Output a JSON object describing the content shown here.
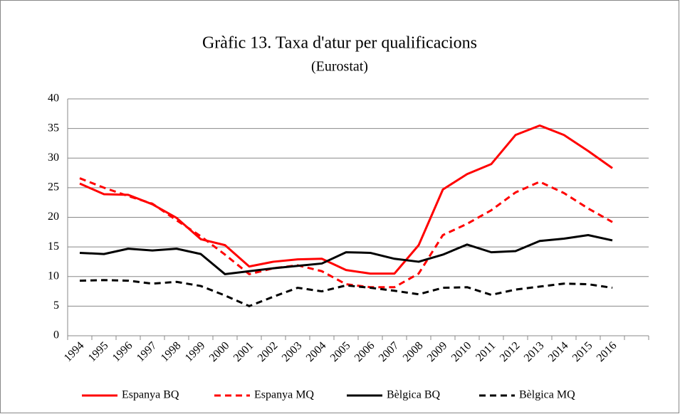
{
  "chart_data": {
    "type": "line",
    "title": "Gràfic 13. Taxa d'atur per qualificacions",
    "subtitle": "(Eurostat)",
    "categories": [
      "1994",
      "1995",
      "1996",
      "1997",
      "1998",
      "1999",
      "2000",
      "2001",
      "2002",
      "2003",
      "2004",
      "2005",
      "2006",
      "2007",
      "2008",
      "2009",
      "2010",
      "2011",
      "2012",
      "2013",
      "2014",
      "2015",
      "2016",
      null
    ],
    "series": [
      {
        "name": "Espanya BQ",
        "color": "#ff0000",
        "dashed": false,
        "values": [
          25.7,
          23.9,
          23.8,
          22.2,
          19.9,
          16.3,
          15.3,
          11.7,
          12.5,
          12.9,
          13.0,
          11.1,
          10.5,
          10.5,
          15.3,
          24.7,
          27.3,
          29.0,
          33.9,
          35.5,
          33.9,
          31.2,
          28.3,
          null
        ]
      },
      {
        "name": "Espanya MQ",
        "color": "#ff0000",
        "dashed": true,
        "values": [
          26.6,
          25.0,
          23.6,
          22.3,
          19.5,
          16.8,
          13.7,
          10.4,
          11.4,
          11.9,
          10.9,
          8.7,
          8.2,
          8.2,
          10.5,
          17.0,
          18.9,
          21.2,
          24.2,
          26.0,
          24.1,
          21.5,
          19.2,
          null
        ]
      },
      {
        "name": "Bèlgica BQ",
        "color": "#000000",
        "dashed": false,
        "values": [
          14.0,
          13.8,
          14.7,
          14.4,
          14.7,
          13.8,
          10.4,
          10.9,
          11.4,
          11.8,
          12.2,
          14.1,
          14.0,
          13.0,
          12.5,
          13.7,
          15.4,
          14.1,
          14.3,
          16.0,
          16.4,
          17.0,
          16.1,
          null
        ]
      },
      {
        "name": "Bèlgica MQ",
        "color": "#000000",
        "dashed": true,
        "values": [
          9.3,
          9.4,
          9.3,
          8.8,
          9.1,
          8.4,
          6.8,
          5.0,
          6.6,
          8.1,
          7.5,
          8.5,
          8.1,
          7.6,
          7.0,
          8.1,
          8.2,
          6.9,
          7.8,
          8.3,
          8.8,
          8.7,
          8.1,
          null
        ]
      }
    ],
    "ylim": [
      0,
      40
    ],
    "yticks": [
      0,
      5,
      10,
      15,
      20,
      25,
      30,
      35,
      40
    ],
    "grid": true,
    "legend": "bottom"
  }
}
